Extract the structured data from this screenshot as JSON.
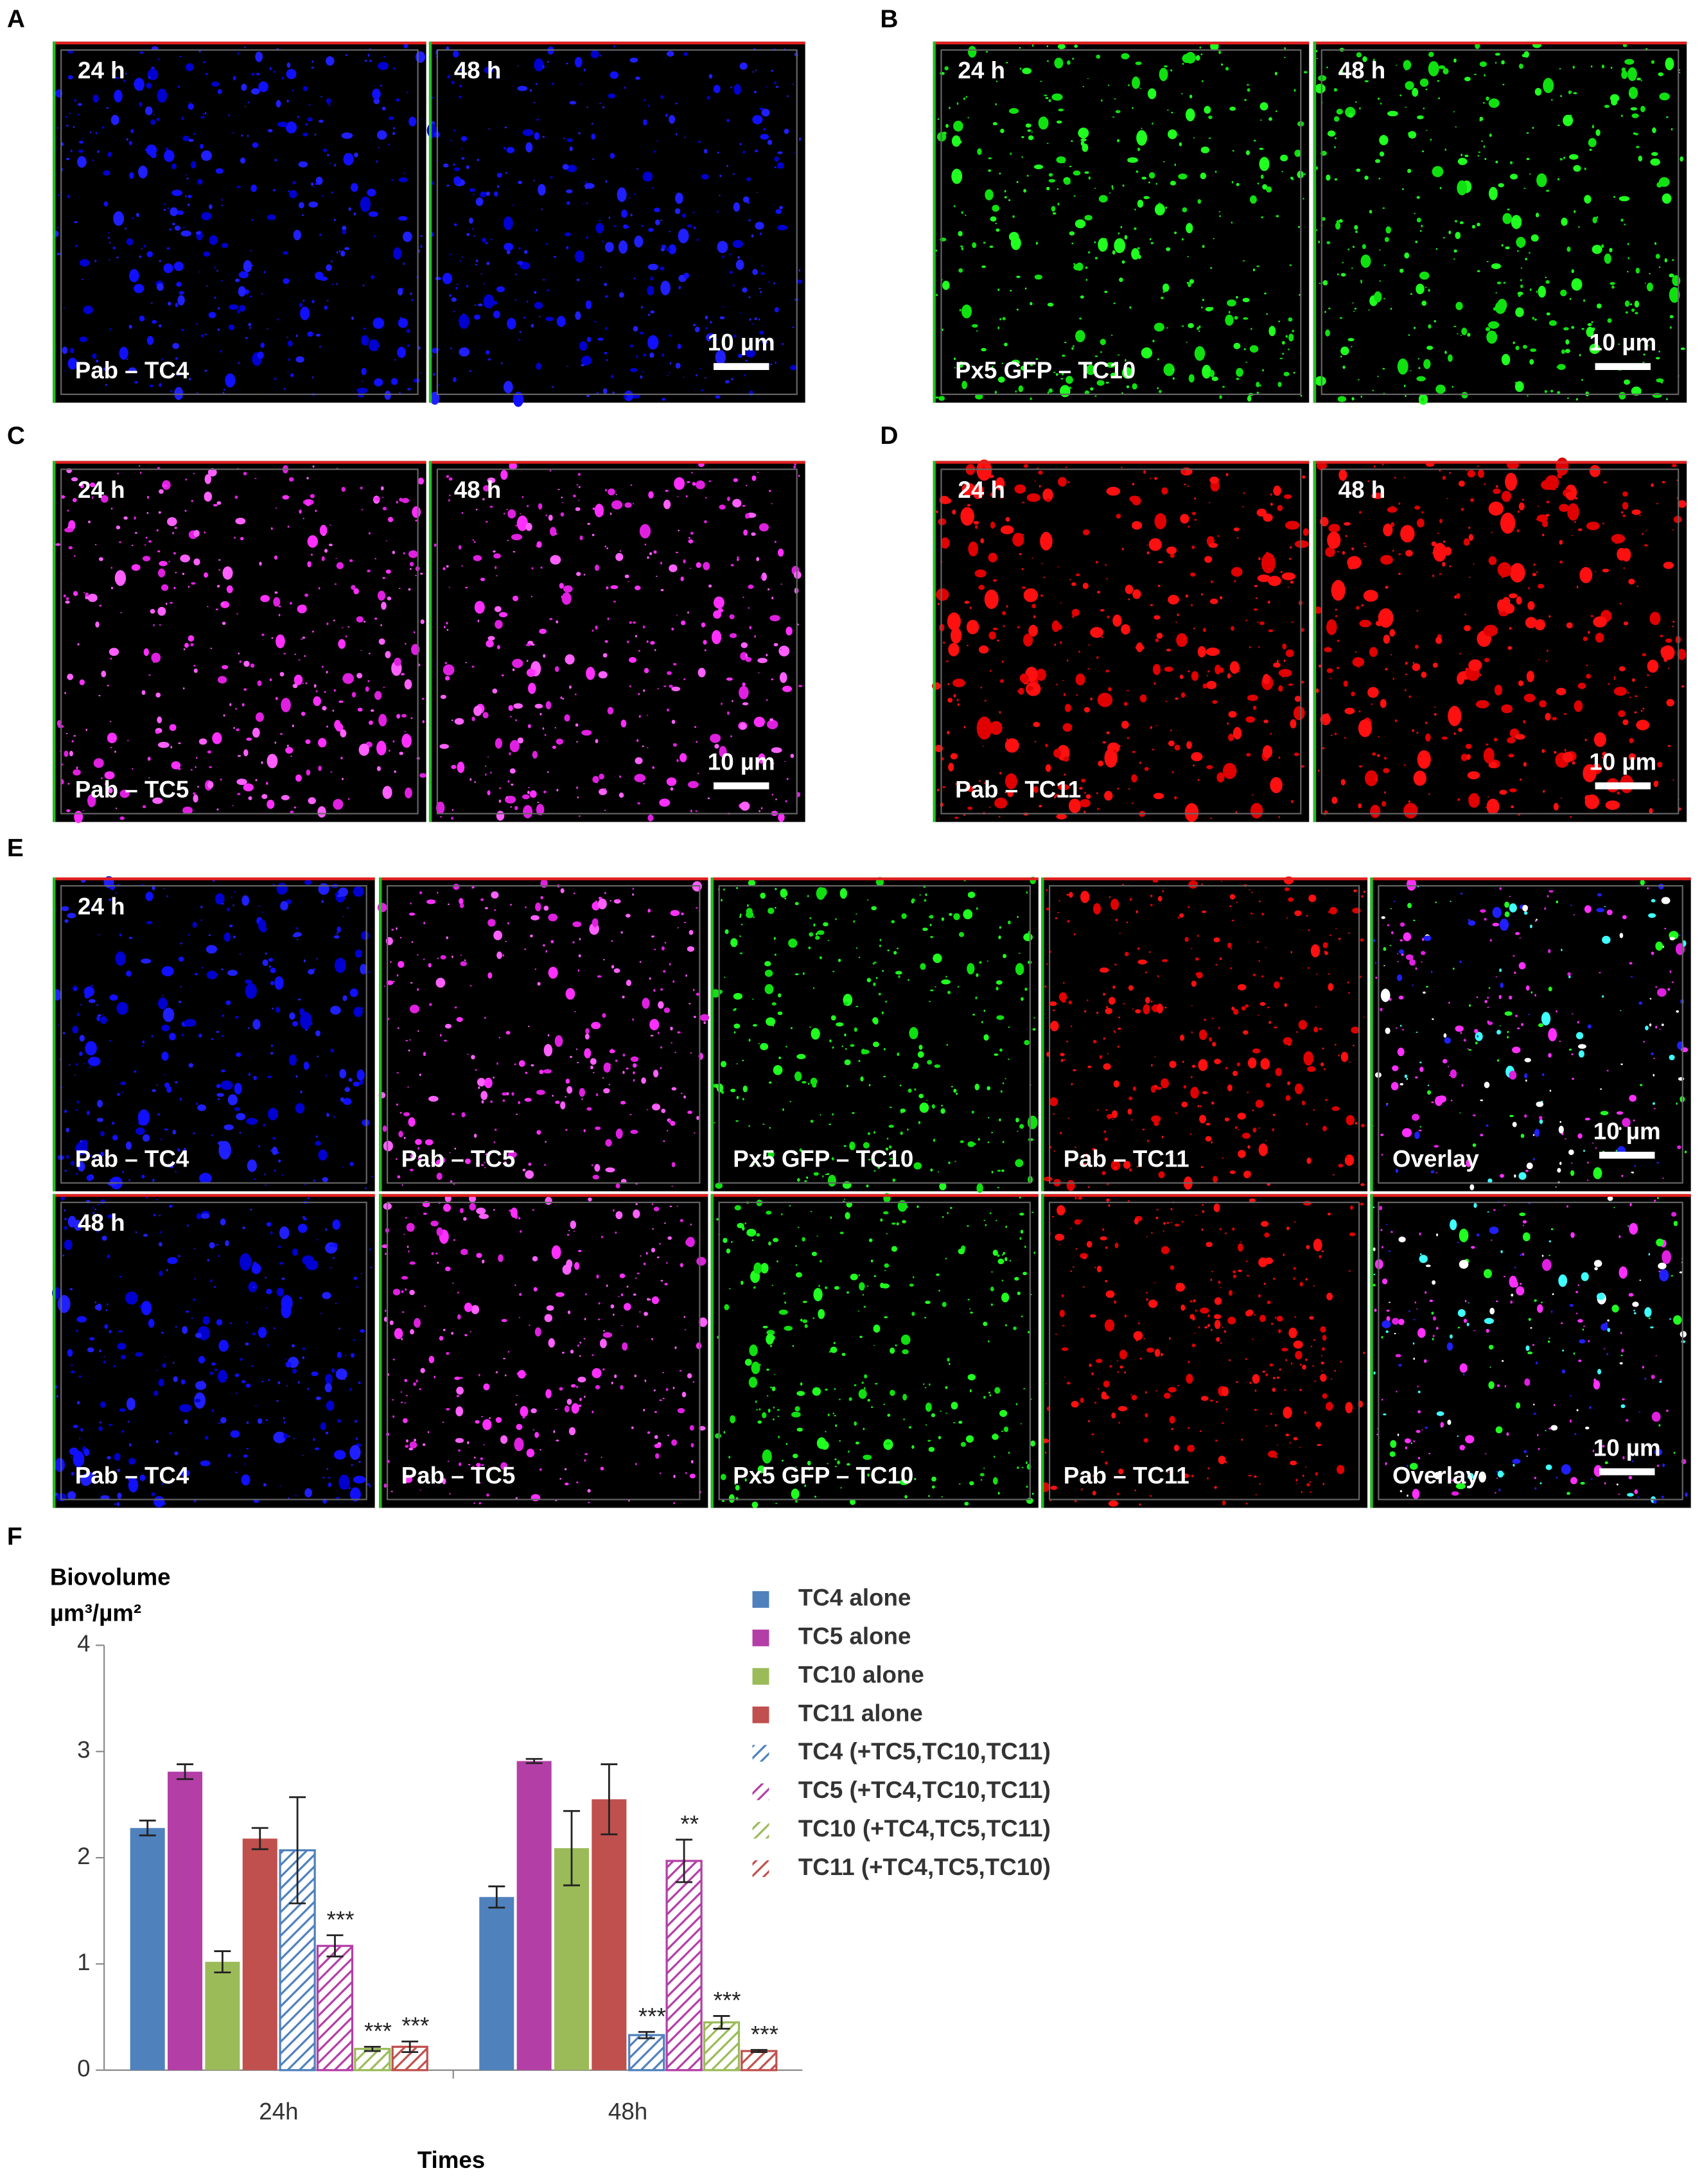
{
  "panels": [
    {
      "letter": "A",
      "images": [
        {
          "time": "24 h",
          "caption": "Pab – TC4"
        },
        {
          "time": "48 h",
          "scale_bar": "10 µm"
        }
      ]
    },
    {
      "letter": "B",
      "images": [
        {
          "time": "24 h",
          "caption": "Px5 GFP – TC10"
        },
        {
          "time": "48 h",
          "scale_bar": "10 µm"
        }
      ]
    },
    {
      "letter": "C",
      "images": [
        {
          "time": "24 h",
          "caption": "Pab – TC5"
        },
        {
          "time": "48 h",
          "scale_bar": "10 µm"
        }
      ]
    },
    {
      "letter": "D",
      "images": [
        {
          "time": "24 h",
          "caption": "Pab – TC11"
        },
        {
          "time": "48 h",
          "scale_bar": "10 µm"
        }
      ]
    },
    {
      "letter": "E",
      "rows": [
        [
          {
            "time": "24 h",
            "caption": "Pab – TC4"
          },
          {
            "caption": "Pab – TC5"
          },
          {
            "caption": "Px5 GFP – TC10"
          },
          {
            "caption": "Pab – TC11"
          },
          {
            "caption": "Overlay",
            "scale_bar": "10 µm"
          }
        ],
        [
          {
            "time": "48 h",
            "caption": "Pab – TC4"
          },
          {
            "caption": "Pab – TC5"
          },
          {
            "caption": "Px5 GFP – TC10"
          },
          {
            "caption": "Pab – TC11"
          },
          {
            "caption": "Overlay",
            "scale_bar": "10 µm"
          }
        ]
      ]
    }
  ],
  "chart_data": {
    "type": "bar",
    "panel_label": "F",
    "y_label": "Biovolume",
    "y_unit": "µm³/µm²",
    "x_label": "Times",
    "categories": [
      "24h",
      "48h"
    ],
    "ylim": [
      0,
      4
    ],
    "yticks": [
      0,
      1,
      2,
      3,
      4
    ],
    "grid": false,
    "legend": "right",
    "series": [
      {
        "name": "TC4 alone",
        "color": "#4f81bd",
        "hatched": false,
        "values": [
          2.28,
          1.63
        ],
        "errors": [
          0.07,
          0.1
        ]
      },
      {
        "name": "TC5 alone",
        "color": "#b33fa6",
        "hatched": false,
        "values": [
          2.81,
          2.91
        ],
        "errors": [
          0.07,
          0.02
        ]
      },
      {
        "name": "TC10 alone",
        "color": "#9bbb59",
        "hatched": false,
        "values": [
          1.02,
          2.09
        ],
        "errors": [
          0.1,
          0.35
        ]
      },
      {
        "name": "TC11 alone",
        "color": "#c0504d",
        "hatched": false,
        "values": [
          2.18,
          2.55
        ],
        "errors": [
          0.1,
          0.33
        ]
      },
      {
        "name": "TC4 (+TC5,TC10,TC11)",
        "color": "#4f81bd",
        "hatched": true,
        "values": [
          2.07,
          0.33
        ],
        "errors": [
          0.5,
          0.03
        ],
        "significance": [
          null,
          "***"
        ]
      },
      {
        "name": "TC5 (+TC4,TC10,TC11)",
        "color": "#b33fa6",
        "hatched": true,
        "values": [
          1.17,
          1.97
        ],
        "errors": [
          0.1,
          0.2
        ],
        "significance": [
          "***",
          "**"
        ]
      },
      {
        "name": "TC10 (+TC4,TC5,TC11)",
        "color": "#9bbb59",
        "hatched": true,
        "values": [
          0.2,
          0.45
        ],
        "errors": [
          0.02,
          0.06
        ],
        "significance": [
          "***",
          "***"
        ]
      },
      {
        "name": "TC11 (+TC4,TC5,TC10)",
        "color": "#c0504d",
        "hatched": true,
        "values": [
          0.22,
          0.18
        ],
        "errors": [
          0.05,
          0.01
        ],
        "significance": [
          "***",
          "***"
        ]
      }
    ]
  }
}
